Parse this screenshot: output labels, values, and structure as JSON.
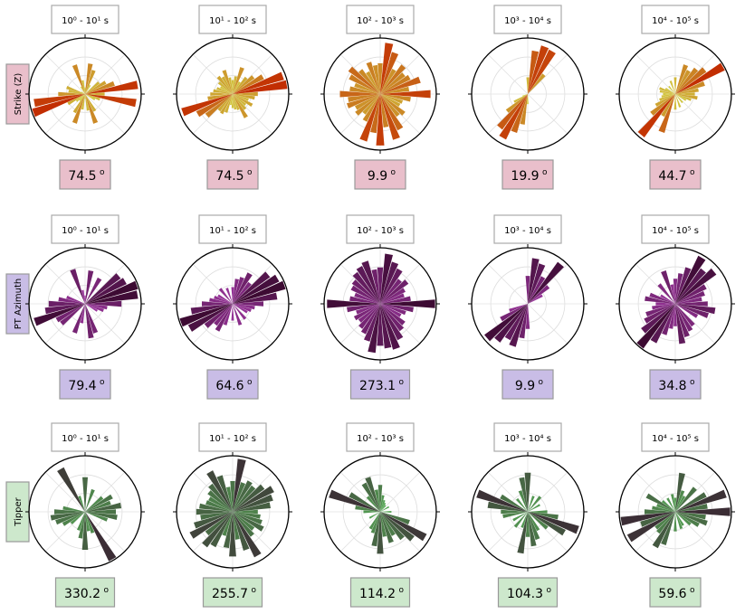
{
  "chart_data": {
    "type": "polar-bar",
    "rows": [
      {
        "label": "Strike (Z)",
        "colors": {
          "inner": "#d4e34a",
          "outer": "#c22a00",
          "box": "#e9bfcb"
        },
        "panels": [
          {
            "period": "10⁰ - 10¹ s",
            "median": "74.5",
            "angles": [
              0,
              10,
              20,
              30,
              50,
              60,
              70,
              80,
              90,
              100,
              110,
              120,
              150,
              160,
              170,
              180,
              190,
              200,
              210,
              220,
              230,
              240,
              250,
              260,
              270,
              280,
              290,
              300,
              330,
              340,
              350
            ],
            "radii": [
              0.12,
              0.55,
              0.45,
              0.18,
              0.32,
              0.42,
              0.55,
              0.95,
              0.35,
              0.92,
              0.28,
              0.2,
              0.35,
              0.55,
              0.3,
              0.08,
              0.28,
              0.55,
              0.38,
              0.15,
              0.2,
              0.35,
              0.98,
              0.92,
              0.48,
              0.3,
              0.35,
              0.08,
              0.15,
              0.55,
              0.25
            ]
          },
          {
            "period": "10¹ - 10² s",
            "median": "74.5",
            "angles": [
              0,
              10,
              20,
              30,
              40,
              50,
              60,
              70,
              80,
              90,
              100,
              110,
              120,
              130,
              140,
              150,
              160,
              170,
              180,
              190,
              200,
              210,
              220,
              230,
              240,
              250,
              260,
              270,
              280,
              290,
              300,
              310,
              320,
              330,
              340,
              350
            ],
            "radii": [
              0.25,
              0.32,
              0.5,
              0.25,
              0.38,
              0.48,
              0.62,
              0.95,
              0.98,
              0.45,
              0.4,
              0.3,
              0.4,
              0.3,
              0.35,
              0.48,
              0.3,
              0.28,
              0.25,
              0.2,
              0.35,
              0.4,
              0.38,
              0.6,
              0.72,
              0.95,
              0.45,
              0.4,
              0.35,
              0.3,
              0.25,
              0.32,
              0.4,
              0.35,
              0.45,
              0.3
            ]
          },
          {
            "period": "10² - 10³ s",
            "median": "9.9",
            "angles": [
              0,
              10,
              20,
              30,
              40,
              50,
              60,
              70,
              80,
              90,
              100,
              110,
              120,
              130,
              140,
              150,
              160,
              170,
              180,
              190,
              200,
              210,
              220,
              230,
              240,
              250,
              260,
              270,
              280,
              290,
              300,
              310,
              320,
              330,
              340,
              350
            ],
            "radii": [
              0.55,
              0.92,
              0.78,
              0.5,
              0.65,
              0.55,
              0.6,
              0.75,
              0.52,
              0.9,
              0.55,
              0.42,
              0.4,
              0.55,
              0.5,
              0.72,
              0.85,
              0.6,
              0.92,
              0.7,
              0.88,
              0.55,
              0.45,
              0.55,
              0.5,
              0.62,
              0.58,
              0.72,
              0.55,
              0.48,
              0.62,
              0.7,
              0.55,
              0.45,
              0.6,
              0.52
            ]
          },
          {
            "period": "10³ - 10⁴ s",
            "median": "19.9",
            "angles": [
              0,
              10,
              20,
              30,
              40,
              180,
              190,
              200,
              210,
              220,
              230,
              240,
              250
            ],
            "radii": [
              0.3,
              0.78,
              0.9,
              0.88,
              0.45,
              0.18,
              0.55,
              0.72,
              0.9,
              0.78,
              0.48,
              0.28,
              0.1
            ]
          },
          {
            "period": "10⁴ - 10⁵ s",
            "median": "44.7",
            "angles": [
              0,
              20,
              30,
              40,
              50,
              60,
              70,
              80,
              90,
              100,
              110,
              120,
              140,
              160,
              180,
              200,
              210,
              220,
              230,
              240,
              250,
              260,
              270,
              280,
              290,
              300,
              320,
              340
            ],
            "radii": [
              0.3,
              0.55,
              0.48,
              0.58,
              0.68,
              0.98,
              0.55,
              0.42,
              0.35,
              0.4,
              0.3,
              0.22,
              0.2,
              0.25,
              0.28,
              0.72,
              0.45,
              0.95,
              0.55,
              0.4,
              0.3,
              0.25,
              0.22,
              0.28,
              0.3,
              0.2,
              0.18,
              0.25
            ]
          }
        ]
      },
      {
        "label": "PT Azimuth",
        "colors": {
          "inner": "#b03fb5",
          "outer": "#3a0a30",
          "box": "#c9bde6"
        },
        "panels": [
          {
            "period": "10⁰ - 10¹ s",
            "median": "79.4",
            "angles": [
              0,
              10,
              30,
              50,
              60,
              70,
              80,
              90,
              100,
              110,
              120,
              160,
              170,
              190,
              200,
              230,
              240,
              250,
              260,
              270,
              280,
              290,
              340,
              350
            ],
            "radii": [
              0.15,
              0.6,
              0.52,
              0.78,
              0.82,
              0.98,
              0.95,
              0.65,
              0.4,
              0.35,
              0.25,
              0.55,
              0.62,
              0.35,
              0.55,
              0.55,
              0.58,
              0.95,
              0.72,
              0.65,
              0.48,
              0.35,
              0.65,
              0.25
            ]
          },
          {
            "period": "10¹ - 10² s",
            "median": "64.6",
            "angles": [
              0,
              10,
              20,
              30,
              40,
              50,
              60,
              70,
              80,
              90,
              100,
              110,
              120,
              140,
              160,
              180,
              200,
              210,
              220,
              230,
              240,
              250,
              260,
              270,
              280,
              290,
              300,
              320,
              340
            ],
            "radii": [
              0.3,
              0.45,
              0.5,
              0.62,
              0.48,
              0.82,
              0.92,
              0.98,
              0.8,
              0.55,
              0.4,
              0.35,
              0.3,
              0.35,
              0.4,
              0.3,
              0.4,
              0.55,
              0.48,
              0.62,
              0.88,
              0.98,
              0.75,
              0.55,
              0.42,
              0.35,
              0.3,
              0.35,
              0.3
            ]
          },
          {
            "period": "10² - 10³ s",
            "median": "273.1",
            "angles": [
              0,
              10,
              20,
              30,
              40,
              50,
              60,
              70,
              80,
              90,
              100,
              110,
              120,
              130,
              140,
              150,
              160,
              170,
              180,
              190,
              200,
              210,
              220,
              230,
              240,
              250,
              260,
              270,
              280,
              290,
              300,
              310,
              320,
              330,
              340,
              350
            ],
            "radii": [
              0.65,
              0.9,
              0.78,
              0.7,
              0.55,
              0.62,
              0.5,
              0.45,
              0.55,
              0.98,
              0.6,
              0.48,
              0.42,
              0.55,
              0.6,
              0.72,
              0.85,
              0.8,
              0.75,
              0.88,
              0.7,
              0.6,
              0.55,
              0.48,
              0.52,
              0.45,
              0.6,
              0.95,
              0.55,
              0.48,
              0.58,
              0.62,
              0.7,
              0.75,
              0.8,
              0.62
            ]
          },
          {
            "period": "10³ - 10⁴ s",
            "median": "9.9",
            "angles": [
              0,
              10,
              20,
              30,
              40,
              50,
              60,
              180,
              190,
              200,
              210,
              220,
              230,
              240,
              250
            ],
            "radii": [
              0.5,
              0.82,
              0.75,
              0.55,
              0.92,
              0.48,
              0.3,
              0.45,
              0.62,
              0.8,
              0.72,
              0.85,
              0.95,
              0.55,
              0.35
            ]
          },
          {
            "period": "10⁴ - 10⁵ s",
            "median": "34.8",
            "angles": [
              0,
              10,
              20,
              30,
              40,
              50,
              60,
              70,
              80,
              90,
              100,
              110,
              120,
              140,
              150,
              160,
              170,
              180,
              190,
              200,
              210,
              220,
              230,
              240,
              250,
              260,
              270,
              280,
              290,
              300,
              320,
              340,
              350
            ],
            "radii": [
              0.45,
              0.55,
              0.68,
              0.95,
              0.78,
              0.9,
              0.62,
              0.55,
              0.48,
              0.58,
              0.72,
              0.62,
              0.45,
              0.5,
              0.55,
              0.62,
              0.72,
              0.4,
              0.45,
              0.58,
              0.78,
              0.98,
              0.75,
              0.62,
              0.55,
              0.42,
              0.35,
              0.55,
              0.48,
              0.3,
              0.45,
              0.62,
              0.35
            ]
          }
        ]
      },
      {
        "label": "Tipper",
        "colors": {
          "inner": "#5ab85a",
          "outer": "#3a2a34",
          "box": "#cde8cc"
        },
        "panels": [
          {
            "period": "10⁰ - 10¹ s",
            "median": "330.2",
            "angles": [
              0,
              20,
              50,
              60,
              70,
              80,
              90,
              100,
              110,
              150,
              160,
              170,
              180,
              190,
              200,
              230,
              240,
              250,
              260,
              270,
              280,
              330,
              340
            ],
            "radii": [
              0.62,
              0.42,
              0.4,
              0.55,
              0.48,
              0.65,
              0.55,
              0.58,
              0.42,
              0.98,
              0.4,
              0.35,
              0.68,
              0.48,
              0.35,
              0.32,
              0.45,
              0.55,
              0.62,
              0.55,
              0.4,
              0.88,
              0.3
            ]
          },
          {
            "period": "10¹ - 10² s",
            "median": "255.7",
            "angles": [
              0,
              10,
              20,
              30,
              40,
              50,
              60,
              70,
              80,
              90,
              100,
              110,
              120,
              130,
              140,
              150,
              160,
              170,
              180,
              190,
              200,
              210,
              220,
              230,
              240,
              250,
              260,
              270,
              280,
              290,
              300,
              310,
              320,
              330,
              340,
              350
            ],
            "radii": [
              0.55,
              0.95,
              0.55,
              0.62,
              0.58,
              0.7,
              0.82,
              0.75,
              0.68,
              0.45,
              0.5,
              0.55,
              0.62,
              0.48,
              0.55,
              0.9,
              0.72,
              0.5,
              0.8,
              0.65,
              0.45,
              0.7,
              0.78,
              0.6,
              0.85,
              0.72,
              0.58,
              0.65,
              0.6,
              0.5,
              0.48,
              0.55,
              0.62,
              0.82,
              0.68,
              0.45
            ]
          },
          {
            "period": "10² - 10³ s",
            "median": "114.2",
            "angles": [
              0,
              10,
              20,
              30,
              40,
              60,
              90,
              110,
              120,
              130,
              140,
              150,
              160,
              170,
              180,
              190,
              200,
              210,
              240,
              270,
              280,
              290,
              300,
              320,
              330,
              340,
              350
            ],
            "radii": [
              0.48,
              0.3,
              0.22,
              0.18,
              0.15,
              0.18,
              0.2,
              0.55,
              0.92,
              0.75,
              0.62,
              0.48,
              0.58,
              0.45,
              0.75,
              0.62,
              0.4,
              0.35,
              0.22,
              0.3,
              0.45,
              0.95,
              0.62,
              0.35,
              0.58,
              0.65,
              0.4
            ]
          },
          {
            "period": "10³ - 10⁴ s",
            "median": "104.3",
            "angles": [
              0,
              20,
              40,
              60,
              90,
              100,
              110,
              120,
              130,
              150,
              160,
              170,
              180,
              190,
              200,
              220,
              240,
              260,
              270,
              280,
              290,
              300,
              320,
              340,
              350
            ],
            "radii": [
              0.7,
              0.3,
              0.35,
              0.25,
              0.35,
              0.55,
              0.95,
              0.75,
              0.45,
              0.38,
              0.52,
              0.62,
              0.45,
              0.75,
              0.3,
              0.35,
              0.3,
              0.45,
              0.48,
              0.72,
              0.95,
              0.55,
              0.3,
              0.4,
              0.62
            ]
          },
          {
            "period": "10⁴ - 10⁵ s",
            "median": "59.6",
            "angles": [
              0,
              10,
              20,
              30,
              40,
              60,
              70,
              80,
              90,
              100,
              110,
              120,
              130,
              150,
              160,
              180,
              200,
              210,
              220,
              230,
              240,
              250,
              260,
              270,
              280,
              290,
              300,
              310,
              330,
              350
            ],
            "radii": [
              0.25,
              0.7,
              0.4,
              0.32,
              0.55,
              0.62,
              0.95,
              0.58,
              0.98,
              0.55,
              0.6,
              0.48,
              0.35,
              0.28,
              0.32,
              0.35,
              0.62,
              0.72,
              0.48,
              0.45,
              0.95,
              0.65,
              0.98,
              0.55,
              0.42,
              0.35,
              0.58,
              0.3,
              0.28,
              0.32
            ]
          }
        ]
      }
    ]
  }
}
